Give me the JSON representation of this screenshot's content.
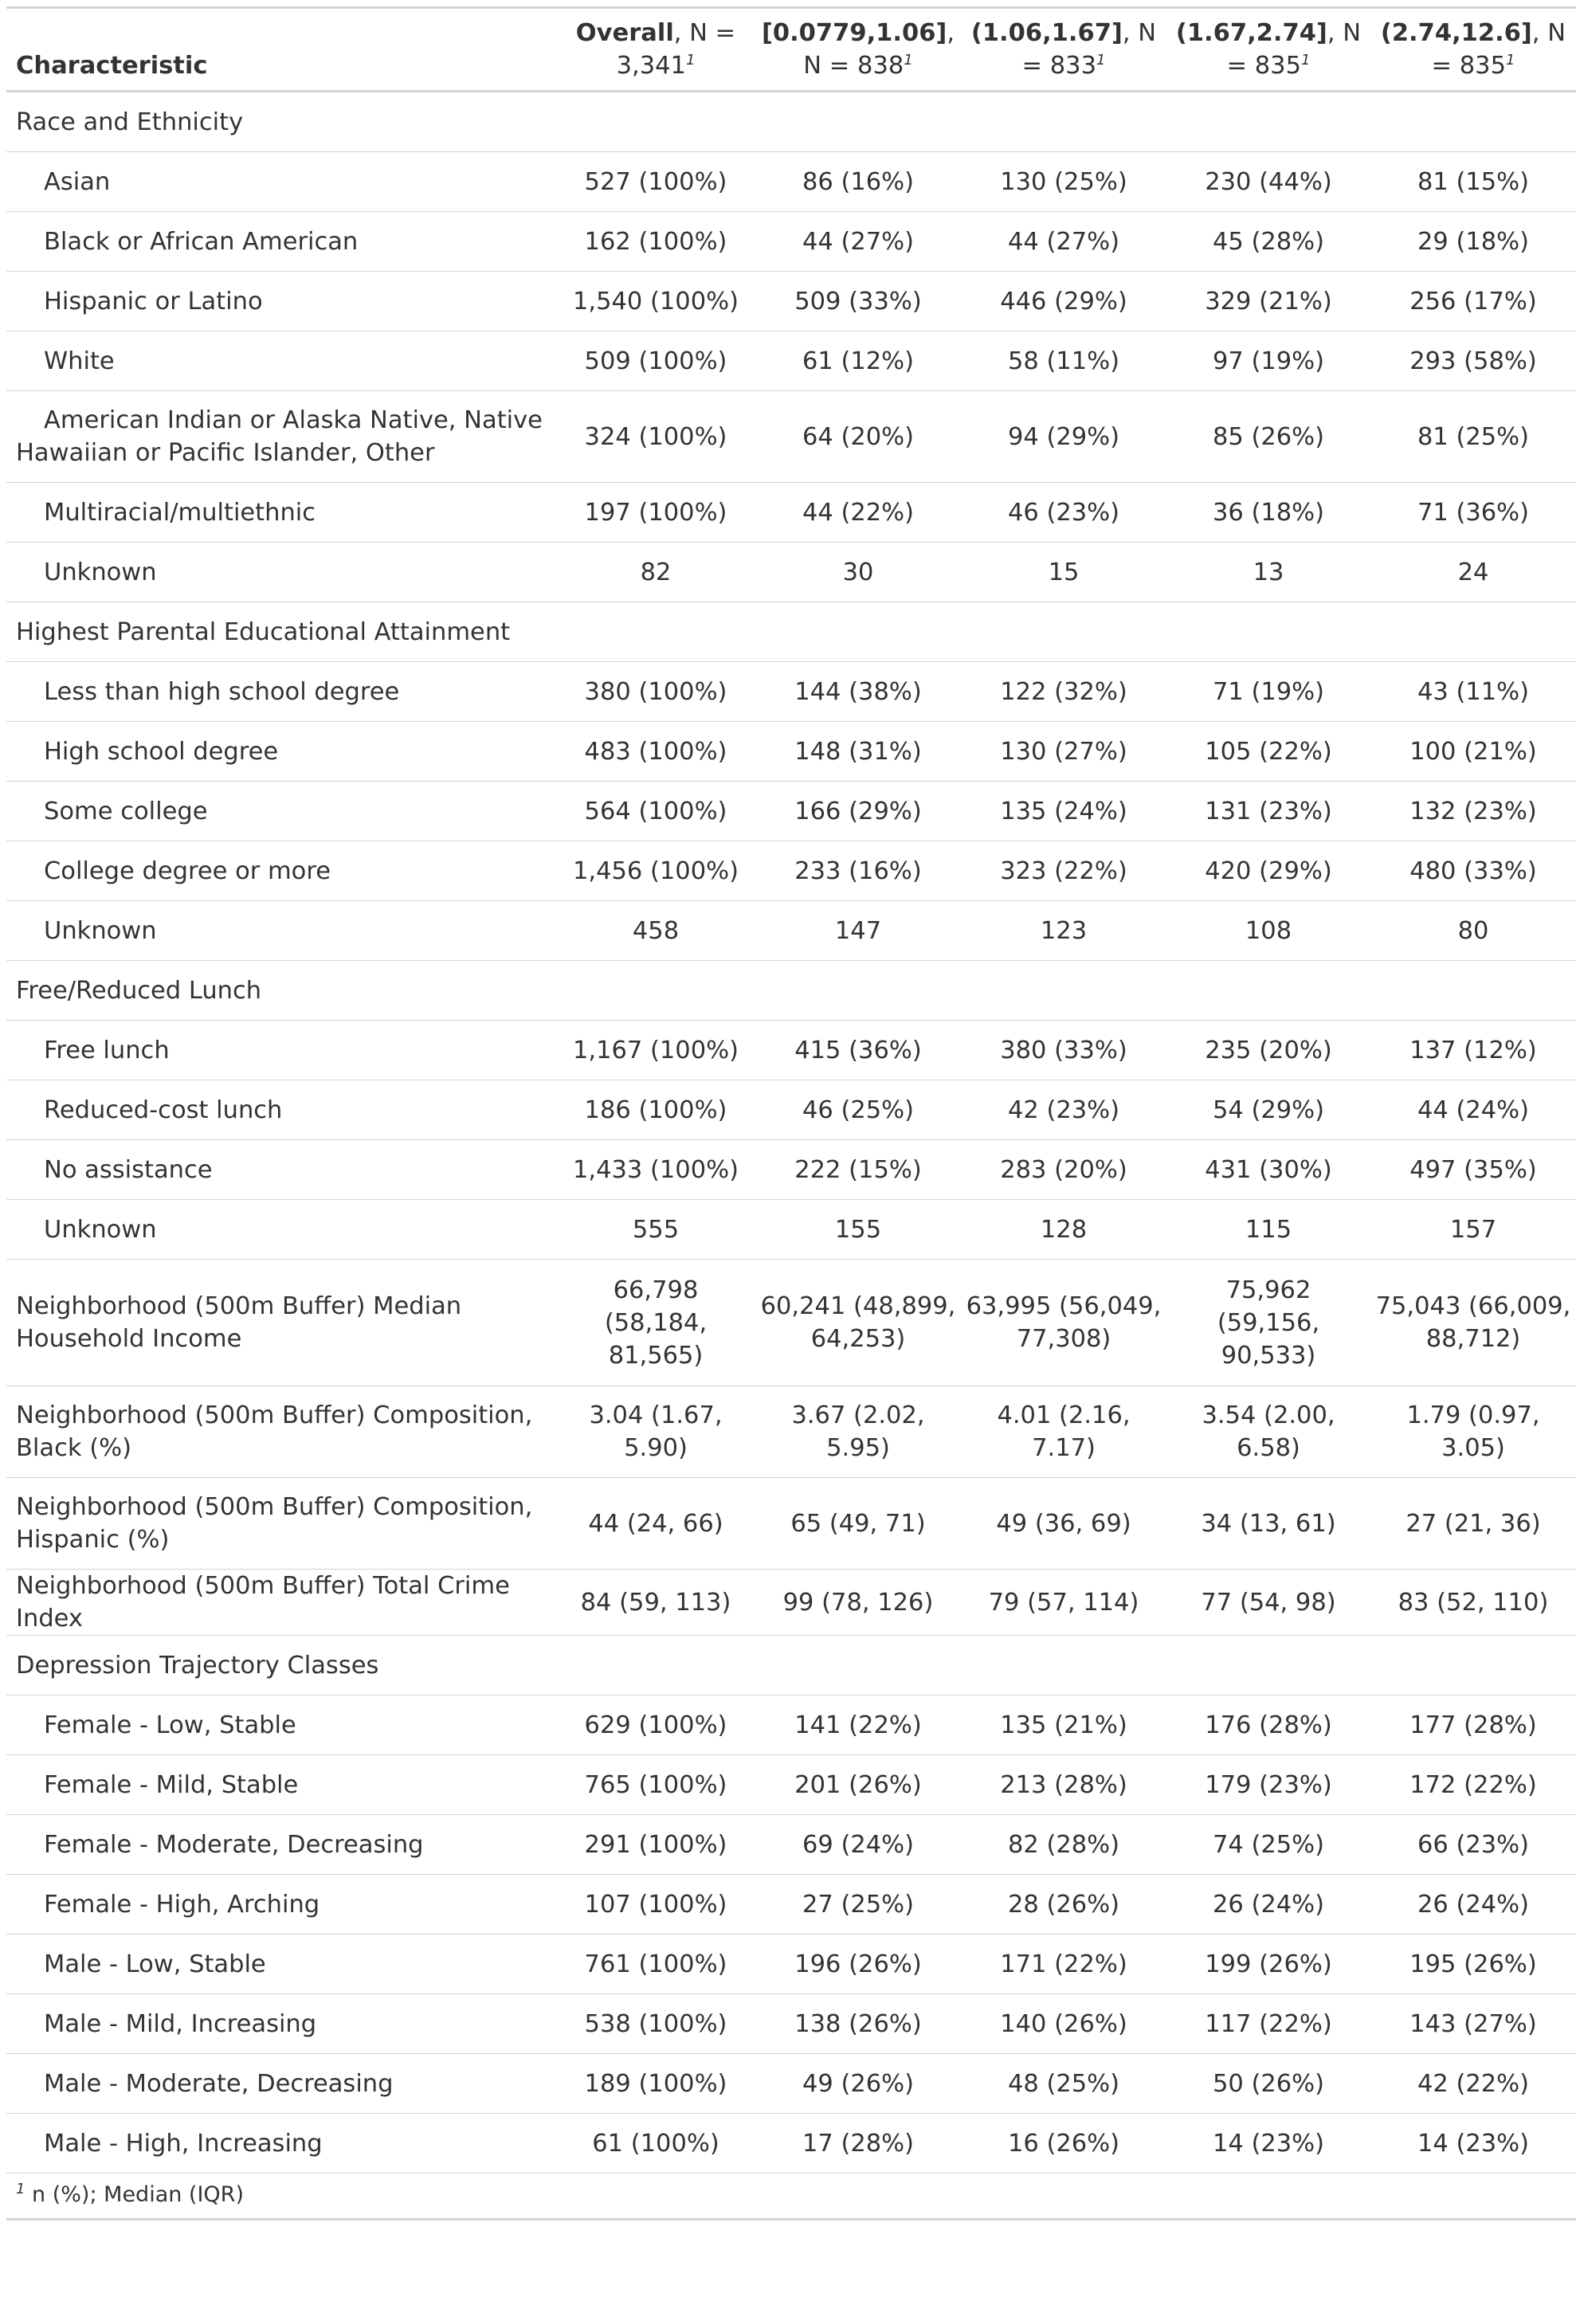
{
  "header": {
    "characteristic": "Characteristic",
    "columns": [
      {
        "label": "Overall",
        "n_text": ", N = 3,341",
        "note": "1"
      },
      {
        "label": "[0.0779,1.06]",
        "n_text": ", N = 838",
        "note": "1"
      },
      {
        "label": "(1.06,1.67]",
        "n_text": ", N = 833",
        "note": "1"
      },
      {
        "label": "(1.67,2.74]",
        "n_text": ", N = 835",
        "note": "1"
      },
      {
        "label": "(2.74,12.6]",
        "n_text": ", N = 835",
        "note": "1"
      }
    ]
  },
  "groups": {
    "race": {
      "label": "Race and Ethnicity",
      "rows": [
        {
          "label": "Asian",
          "values": [
            "527 (100%)",
            "86 (16%)",
            "130 (25%)",
            "230 (44%)",
            "81 (15%)"
          ]
        },
        {
          "label": "Black or African American",
          "values": [
            "162 (100%)",
            "44 (27%)",
            "44 (27%)",
            "45 (28%)",
            "29 (18%)"
          ]
        },
        {
          "label": "Hispanic or Latino",
          "values": [
            "1,540 (100%)",
            "509 (33%)",
            "446 (29%)",
            "329 (21%)",
            "256 (17%)"
          ]
        },
        {
          "label": "White",
          "values": [
            "509 (100%)",
            "61 (12%)",
            "58 (11%)",
            "97 (19%)",
            "293 (58%)"
          ]
        },
        {
          "label": "American Indian or Alaska Native, Native Hawaiian or Pacific Islander, Other",
          "values": [
            "324 (100%)",
            "64 (20%)",
            "94 (29%)",
            "85 (26%)",
            "81 (25%)"
          ]
        },
        {
          "label": "Multiracial/multiethnic",
          "values": [
            "197 (100%)",
            "44 (22%)",
            "46 (23%)",
            "36 (18%)",
            "71 (36%)"
          ]
        },
        {
          "label": "Unknown",
          "values": [
            "82",
            "30",
            "15",
            "13",
            "24"
          ]
        }
      ]
    },
    "education": {
      "label": "Highest Parental Educational Attainment",
      "rows": [
        {
          "label": "Less than high school degree",
          "values": [
            "380 (100%)",
            "144 (38%)",
            "122 (32%)",
            "71 (19%)",
            "43 (11%)"
          ]
        },
        {
          "label": "High school degree",
          "values": [
            "483 (100%)",
            "148 (31%)",
            "130 (27%)",
            "105 (22%)",
            "100 (21%)"
          ]
        },
        {
          "label": "Some college",
          "values": [
            "564 (100%)",
            "166 (29%)",
            "135 (24%)",
            "131 (23%)",
            "132 (23%)"
          ]
        },
        {
          "label": "College degree or more",
          "values": [
            "1,456 (100%)",
            "233 (16%)",
            "323 (22%)",
            "420 (29%)",
            "480 (33%)"
          ]
        },
        {
          "label": "Unknown",
          "values": [
            "458",
            "147",
            "123",
            "108",
            "80"
          ]
        }
      ]
    },
    "lunch": {
      "label": "Free/Reduced Lunch",
      "rows": [
        {
          "label": "Free lunch",
          "values": [
            "1,167 (100%)",
            "415 (36%)",
            "380 (33%)",
            "235 (20%)",
            "137 (12%)"
          ]
        },
        {
          "label": "Reduced-cost lunch",
          "values": [
            "186 (100%)",
            "46 (25%)",
            "42 (23%)",
            "54 (29%)",
            "44 (24%)"
          ]
        },
        {
          "label": "No assistance",
          "values": [
            "1,433 (100%)",
            "222 (15%)",
            "283 (20%)",
            "431 (30%)",
            "497 (35%)"
          ]
        },
        {
          "label": "Unknown",
          "values": [
            "555",
            "155",
            "128",
            "115",
            "157"
          ]
        }
      ]
    },
    "depression": {
      "label": "Depression Trajectory Classes",
      "rows": [
        {
          "label": "Female - Low, Stable",
          "values": [
            "629 (100%)",
            "141 (22%)",
            "135 (21%)",
            "176 (28%)",
            "177 (28%)"
          ]
        },
        {
          "label": "Female - Mild, Stable",
          "values": [
            "765 (100%)",
            "201 (26%)",
            "213 (28%)",
            "179 (23%)",
            "172 (22%)"
          ]
        },
        {
          "label": "Female - Moderate, Decreasing",
          "values": [
            "291 (100%)",
            "69 (24%)",
            "82 (28%)",
            "74 (25%)",
            "66 (23%)"
          ]
        },
        {
          "label": "Female - High, Arching",
          "values": [
            "107 (100%)",
            "27 (25%)",
            "28 (26%)",
            "26 (24%)",
            "26 (24%)"
          ]
        },
        {
          "label": "Male - Low, Stable",
          "values": [
            "761 (100%)",
            "196 (26%)",
            "171 (22%)",
            "199 (26%)",
            "195 (26%)"
          ]
        },
        {
          "label": "Male - Mild, Increasing",
          "values": [
            "538 (100%)",
            "138 (26%)",
            "140 (26%)",
            "117 (22%)",
            "143 (27%)"
          ]
        },
        {
          "label": "Male - Moderate, Decreasing",
          "values": [
            "189 (100%)",
            "49 (26%)",
            "48 (25%)",
            "50 (26%)",
            "42 (22%)"
          ]
        },
        {
          "label": "Male - High, Increasing",
          "values": [
            "61 (100%)",
            "17 (28%)",
            "16 (26%)",
            "14 (23%)",
            "14 (23%)"
          ]
        }
      ]
    }
  },
  "continuous": {
    "income": {
      "label": "Neighborhood (500m Buffer) Median Household Income",
      "values": [
        "66,798 (58,184, 81,565)",
        "60,241 (48,899, 64,253)",
        "63,995 (56,049, 77,308)",
        "75,962 (59,156, 90,533)",
        "75,043 (66,009, 88,712)"
      ]
    },
    "black": {
      "label": "Neighborhood (500m Buffer) Composition, Black (%)",
      "values": [
        "3.04 (1.67, 5.90)",
        "3.67 (2.02, 5.95)",
        "4.01 (2.16, 7.17)",
        "3.54 (2.00, 6.58)",
        "1.79 (0.97, 3.05)"
      ]
    },
    "hispanic": {
      "label": "Neighborhood (500m Buffer) Composition, Hispanic (%)",
      "values": [
        "44 (24, 66)",
        "65 (49, 71)",
        "49 (36, 69)",
        "34 (13, 61)",
        "27 (21, 36)"
      ]
    },
    "crime": {
      "label": "Neighborhood (500m Buffer) Total Crime Index",
      "values": [
        "84 (59, 113)",
        "99 (78, 126)",
        "79 (57, 114)",
        "77 (54, 98)",
        "83 (52, 110)"
      ]
    }
  },
  "footnote": {
    "mark": "1",
    "text": "n (%); Median (IQR)"
  }
}
